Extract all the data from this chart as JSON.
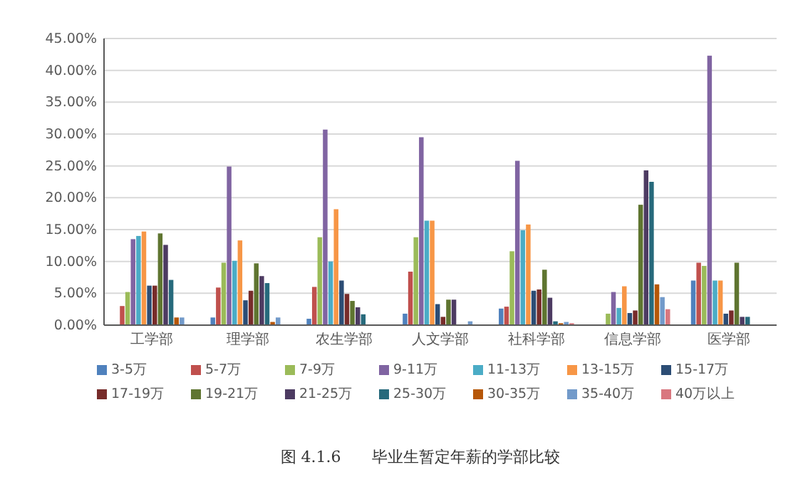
{
  "chart_data": {
    "type": "bar",
    "title": "图 4.1.6　　毕业生暂定年薪的学部比较",
    "categories": [
      "工学部",
      "理学部",
      "农生学部",
      "人文学部",
      "社科学部",
      "信息学部",
      "医学部"
    ],
    "ylim": [
      0,
      45
    ],
    "yticks": [
      {
        "value": 0,
        "label": "0.00%"
      },
      {
        "value": 5,
        "label": "5.00%"
      },
      {
        "value": 10,
        "label": "10.00%"
      },
      {
        "value": 15,
        "label": "15.00%"
      },
      {
        "value": 20,
        "label": "20.00%"
      },
      {
        "value": 25,
        "label": "25.00%"
      },
      {
        "value": 30,
        "label": "30.00%"
      },
      {
        "value": 35,
        "label": "35.00%"
      },
      {
        "value": 40,
        "label": "40.00%"
      },
      {
        "value": 45,
        "label": "45.00%"
      }
    ],
    "grid": "y",
    "legend": "bottom",
    "series": [
      {
        "name": "3-5万",
        "color": "#4f81bd",
        "values": [
          null,
          1.2,
          1.0,
          1.8,
          2.6,
          null,
          7.0
        ]
      },
      {
        "name": "5-7万",
        "color": "#c0504d",
        "values": [
          3.0,
          5.9,
          6.0,
          8.4,
          2.9,
          0,
          9.8
        ]
      },
      {
        "name": "7-9万",
        "color": "#9bbb59",
        "values": [
          5.2,
          9.8,
          13.8,
          13.8,
          11.6,
          1.8,
          9.3
        ]
      },
      {
        "name": "9-11万",
        "color": "#8064a2",
        "values": [
          13.5,
          24.9,
          30.7,
          29.5,
          25.8,
          5.2,
          42.3
        ]
      },
      {
        "name": "11-13万",
        "color": "#4bacc6",
        "values": [
          14.0,
          10.1,
          10.0,
          16.4,
          14.9,
          2.7,
          7.0
        ]
      },
      {
        "name": "13-15万",
        "color": "#f79646",
        "values": [
          14.7,
          13.3,
          18.2,
          16.4,
          15.8,
          6.1,
          7.0
        ]
      },
      {
        "name": "15-17万",
        "color": "#2c4d75",
        "values": [
          6.2,
          3.9,
          7.0,
          3.3,
          5.4,
          1.9,
          1.8
        ]
      },
      {
        "name": "17-19万",
        "color": "#772c2a",
        "values": [
          6.2,
          5.4,
          4.9,
          1.3,
          5.6,
          2.3,
          2.3
        ]
      },
      {
        "name": "19-21万",
        "color": "#5f7530",
        "values": [
          14.4,
          9.7,
          3.8,
          4.0,
          8.7,
          18.9,
          9.8
        ]
      },
      {
        "name": "21-25万",
        "color": "#4d3b62",
        "values": [
          12.6,
          7.7,
          2.8,
          4.0,
          4.3,
          24.3,
          1.3
        ]
      },
      {
        "name": "25-30万",
        "color": "#276a7c",
        "values": [
          7.1,
          6.6,
          1.7,
          0,
          0.6,
          22.5,
          1.3
        ]
      },
      {
        "name": "30-35万",
        "color": "#b65708",
        "values": [
          1.2,
          0.5,
          0,
          0,
          0.3,
          6.4,
          0
        ]
      },
      {
        "name": "35-40万",
        "color": "#729aca",
        "values": [
          1.2,
          1.2,
          0,
          0.6,
          0.5,
          4.4,
          0
        ]
      },
      {
        "name": "40万以上",
        "color": "#d9777f",
        "values": [
          null,
          0,
          0,
          0,
          0.3,
          2.5,
          0
        ]
      }
    ]
  }
}
